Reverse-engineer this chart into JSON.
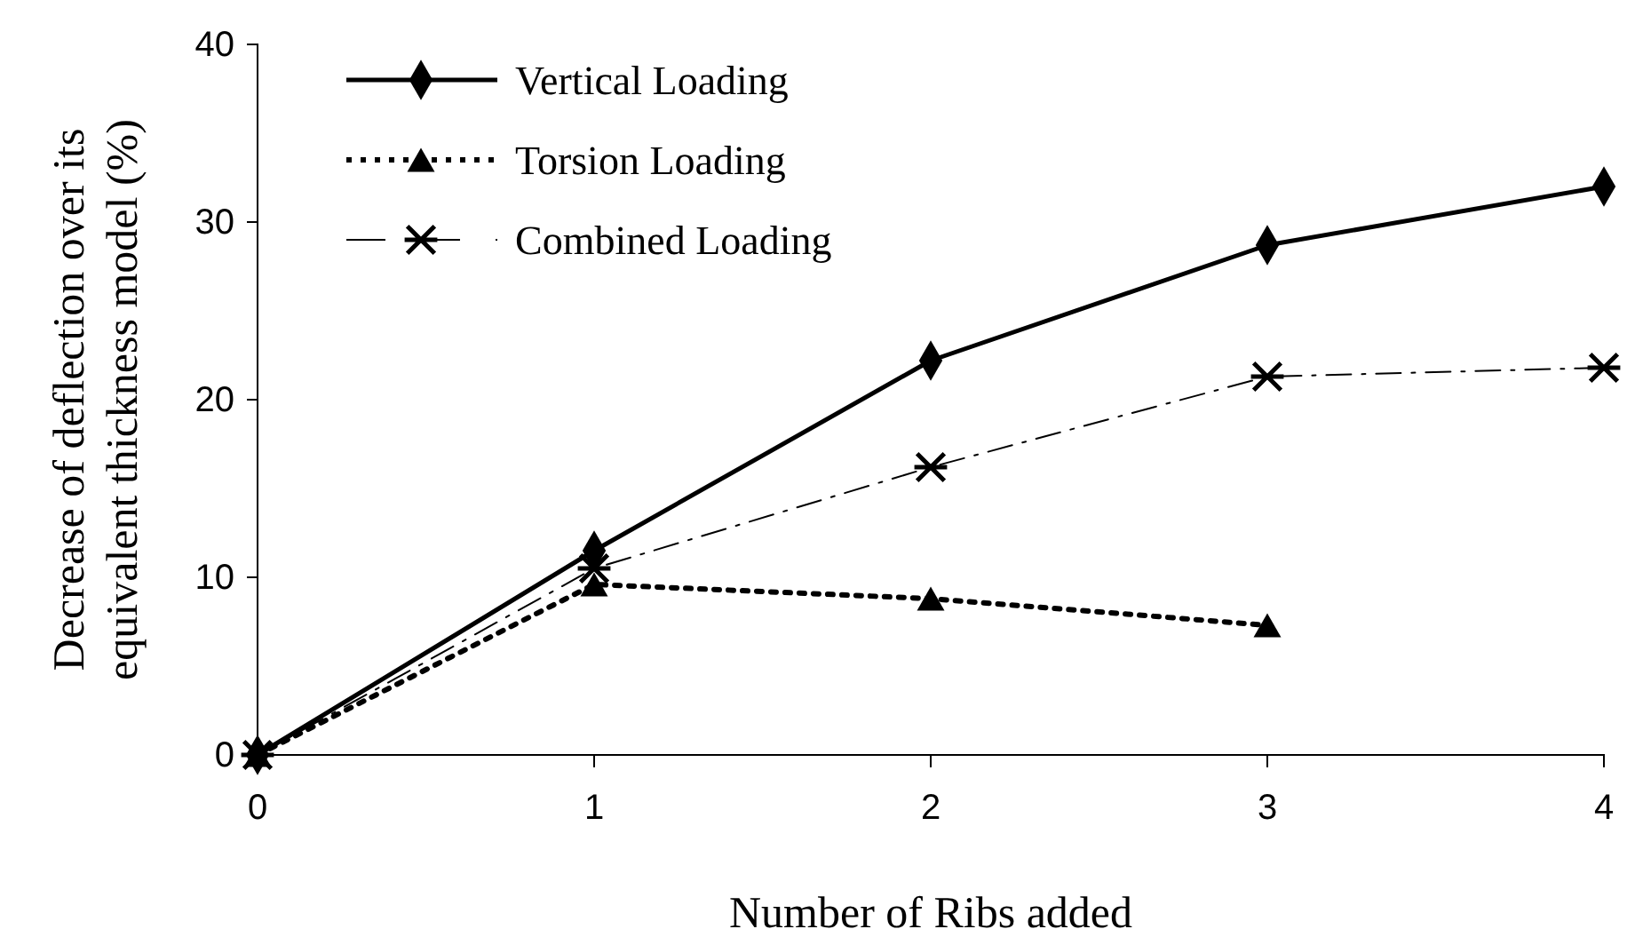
{
  "chart_data": {
    "type": "line",
    "xlabel": "Number of Ribs added",
    "ylabel": "Decrease of deflection over its equivalent thickness model (%)",
    "x": [
      0,
      1,
      2,
      3,
      4
    ],
    "xlim": [
      0,
      4
    ],
    "xticks": [
      0,
      1,
      2,
      3,
      4
    ],
    "ylim": [
      0,
      40
    ],
    "yticks": [
      0,
      10,
      20,
      30,
      40
    ],
    "grid": false,
    "legend": "top left",
    "series": [
      {
        "name": "Vertical Loading",
        "color": "#000000",
        "marker": "diamond",
        "line_style": "solid",
        "values": [
          0,
          11.5,
          22.2,
          28.7,
          32
        ]
      },
      {
        "name": "Torsion Loading",
        "color": "#000000",
        "marker": "triangle",
        "line_style": "dotted",
        "values": [
          0,
          9.6,
          8.8,
          7.3,
          null
        ]
      },
      {
        "name": "Combined Loading",
        "color": "#000000",
        "marker": "cross",
        "line_style": "dashed",
        "values": [
          0,
          10.5,
          16.2,
          21.3,
          21.8
        ]
      }
    ]
  }
}
